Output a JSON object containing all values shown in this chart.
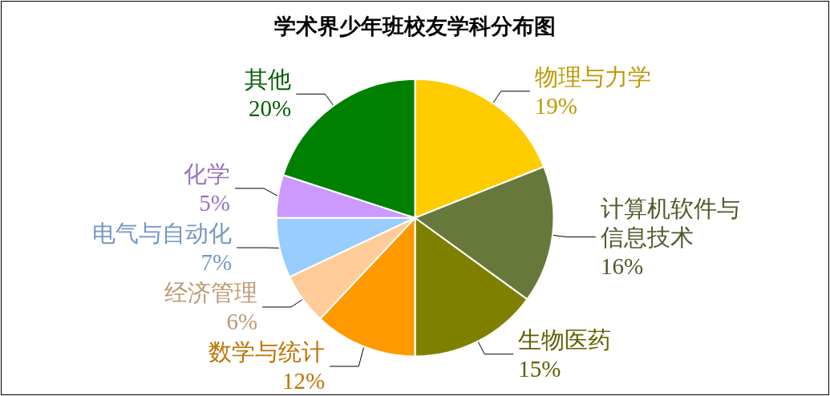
{
  "chart_data": {
    "type": "pie",
    "title": "学术界少年班校友学科分布图",
    "categories": [
      "物理与力学",
      "计算机软件与信息技术",
      "生物医药",
      "数学与统计",
      "经济管理",
      "电气与自动化",
      "化学",
      "其他"
    ],
    "values": [
      19,
      16,
      15,
      12,
      6,
      7,
      5,
      20
    ],
    "colors": [
      "#ffcc00",
      "#66793a",
      "#808000",
      "#ff9900",
      "#ffcc99",
      "#99ccff",
      "#cc99ff",
      "#008000"
    ],
    "value_labels": [
      "19%",
      "16%",
      "15%",
      "12%",
      "6%",
      "7%",
      "5%",
      "20%"
    ]
  }
}
